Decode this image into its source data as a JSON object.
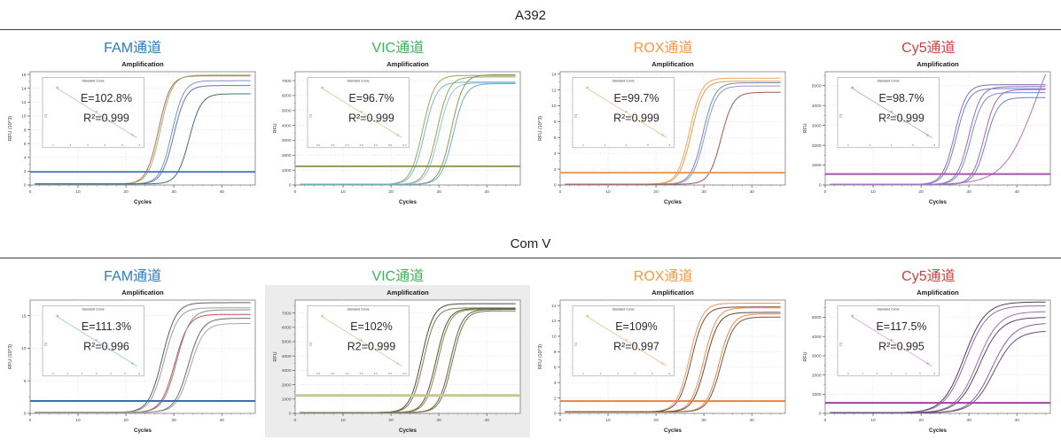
{
  "sections": [
    {
      "title": "A392",
      "channels": [
        {
          "label": "FAM通道",
          "color": "#2e7bbf"
        },
        {
          "label": "VIC通道",
          "color": "#41b05b"
        },
        {
          "label": "ROX通道",
          "color": "#f79843"
        },
        {
          "label": "Cy5通道",
          "color": "#c9413f"
        }
      ]
    },
    {
      "title": "Com V",
      "channels": [
        {
          "label": "FAM通道",
          "color": "#2e7bbf"
        },
        {
          "label": "VIC通道",
          "color": "#41b05b"
        },
        {
          "label": "ROX通道",
          "color": "#f79843"
        },
        {
          "label": "Cy5通道",
          "color": "#c9413f"
        }
      ]
    }
  ],
  "chart_data": [
    {
      "group": "A392",
      "channel": "FAM",
      "type": "line",
      "title": "Amplification",
      "xlabel": "Cycles",
      "ylabel": "RFU (10^3)",
      "xlim": [
        0,
        47
      ],
      "ylim": [
        0,
        16.4
      ],
      "xticks": [
        0,
        10,
        20,
        30,
        40
      ],
      "yticks": [
        0,
        2,
        4,
        6,
        8,
        10,
        12,
        14,
        16
      ],
      "threshold": {
        "value": 1.9,
        "color": "#4a7ab5",
        "width": 1.8
      },
      "curves": [
        {
          "color": "#c4635e",
          "baseline": 0.15,
          "plateau": 15.8,
          "midpoint": 26.8,
          "rate": 0.8
        },
        {
          "color": "#8fbb66",
          "baseline": 0.15,
          "plateau": 15.9,
          "midpoint": 27.2,
          "rate": 0.8
        },
        {
          "color": "#7d92c4",
          "baseline": 0.15,
          "plateau": 15.1,
          "midpoint": 29.6,
          "rate": 0.8
        },
        {
          "color": "#5d7ab2",
          "baseline": 0.15,
          "plateau": 14.4,
          "midpoint": 30.0,
          "rate": 0.8
        },
        {
          "color": "#3e7077",
          "baseline": 0.15,
          "plateau": 13.2,
          "midpoint": 33.2,
          "rate": 0.8
        }
      ],
      "inset": {
        "title": "Standard Curve",
        "ylabel": "Cq",
        "e_label": "E=102.8%",
        "r2_label": "R²=0.999",
        "line_color": "#a8c6e4",
        "xticks": [
          "1",
          "2",
          "3",
          "4",
          "5",
          "6"
        ],
        "points": [
          [
            0.05,
            0.04
          ],
          [
            0.5,
            0.48
          ],
          [
            0.68,
            0.66
          ],
          [
            0.92,
            0.9
          ]
        ]
      },
      "panel_bg": "#ffffff"
    },
    {
      "group": "A392",
      "channel": "VIC",
      "type": "line",
      "title": "Amplification",
      "xlabel": "Cycles",
      "ylabel": "RFU",
      "xlim": [
        0,
        47
      ],
      "ylim": [
        0,
        7600
      ],
      "xticks": [
        0,
        10,
        20,
        30,
        40
      ],
      "yticks": [
        0,
        1000,
        2000,
        3000,
        4000,
        5000,
        6000,
        7000
      ],
      "threshold": {
        "value": 1250,
        "color": "#8a8f4a",
        "width": 1.8
      },
      "curves": [
        {
          "color": "#a2a35e",
          "baseline": 40,
          "plateau": 7350,
          "midpoint": 26.6,
          "rate": 0.8
        },
        {
          "color": "#79b7d6",
          "baseline": 40,
          "plateau": 6900,
          "midpoint": 27.0,
          "rate": 0.8
        },
        {
          "color": "#9aa05a",
          "baseline": 40,
          "plateau": 7250,
          "midpoint": 29.6,
          "rate": 0.8
        },
        {
          "color": "#8fc3dd",
          "baseline": 40,
          "plateau": 6850,
          "midpoint": 30.0,
          "rate": 0.8
        },
        {
          "color": "#8e9652",
          "baseline": 40,
          "plateau": 7400,
          "midpoint": 32.6,
          "rate": 0.8
        },
        {
          "color": "#6aaccb",
          "baseline": 40,
          "plateau": 6800,
          "midpoint": 33.0,
          "rate": 0.8
        }
      ],
      "inset": {
        "title": "Standard Curve",
        "ylabel": "Cq",
        "e_label": "E=96.7%",
        "r2_label": "R²=0.999",
        "line_color": "#c9cf9a",
        "xticks": [
          "3.0",
          "3.5",
          "4.0",
          "4.5",
          "5.0",
          "5.5",
          "6.0"
        ],
        "points": [
          [
            0.05,
            0.04
          ],
          [
            0.5,
            0.48
          ],
          [
            0.68,
            0.66
          ],
          [
            0.92,
            0.9
          ]
        ]
      },
      "panel_bg": "#ffffff"
    },
    {
      "group": "A392",
      "channel": "ROX",
      "type": "line",
      "title": "Amplification",
      "xlabel": "Cycles",
      "ylabel": "RFU (10^3)",
      "xlim": [
        0,
        47
      ],
      "ylim": [
        0,
        14.3
      ],
      "xticks": [
        0,
        10,
        20,
        30,
        40
      ],
      "yticks": [
        0,
        2,
        4,
        6,
        8,
        10,
        12,
        14
      ],
      "threshold": {
        "value": 1.55,
        "color": "#f09a4e",
        "width": 2
      },
      "curves": [
        {
          "color": "#f0a45c",
          "baseline": 0.1,
          "plateau": 13.5,
          "midpoint": 27.0,
          "rate": 0.8
        },
        {
          "color": "#e89a50",
          "baseline": 0.1,
          "plateau": 13.1,
          "midpoint": 27.4,
          "rate": 0.8
        },
        {
          "color": "#7588bb",
          "baseline": 0.1,
          "plateau": 12.9,
          "midpoint": 29.8,
          "rate": 0.8
        },
        {
          "color": "#8a9ac6",
          "baseline": 0.1,
          "plateau": 12.5,
          "midpoint": 30.2,
          "rate": 0.8
        },
        {
          "color": "#a1594f",
          "baseline": 0.1,
          "plateau": 11.7,
          "midpoint": 33.6,
          "rate": 0.8
        }
      ],
      "inset": {
        "title": "Standard Curve",
        "ylabel": "Cq",
        "e_label": "E=99.7%",
        "r2_label": "R²=0.999",
        "line_color": "#f3c08e",
        "xticks": [
          "2",
          "3",
          "4",
          "5",
          "6"
        ],
        "points": [
          [
            0.05,
            0.04
          ],
          [
            0.5,
            0.48
          ],
          [
            0.68,
            0.66
          ],
          [
            0.92,
            0.9
          ]
        ]
      },
      "panel_bg": "#ffffff"
    },
    {
      "group": "A392",
      "channel": "Cy5",
      "type": "line",
      "title": "Amplification",
      "xlabel": "Cycles",
      "ylabel": "RFU",
      "xlim": [
        0,
        47
      ],
      "ylim": [
        0,
        5700
      ],
      "xticks": [
        0,
        10,
        20,
        30,
        40
      ],
      "yticks": [
        0,
        1000,
        2000,
        3000,
        4000,
        5000
      ],
      "threshold": {
        "value": 550,
        "color": "#a855a8",
        "width": 2
      },
      "curves": [
        {
          "color": "#8d6cba",
          "baseline": 30,
          "plateau": 5050,
          "midpoint": 27.0,
          "rate": 0.8
        },
        {
          "color": "#6b7fc7",
          "baseline": 30,
          "plateau": 4850,
          "midpoint": 27.4,
          "rate": 0.8
        },
        {
          "color": "#9b6ab5",
          "baseline": 30,
          "plateau": 4950,
          "midpoint": 30.0,
          "rate": 0.8
        },
        {
          "color": "#7a8cd0",
          "baseline": 30,
          "plateau": 4650,
          "midpoint": 30.4,
          "rate": 0.8
        },
        {
          "color": "#a569b8",
          "baseline": 30,
          "plateau": 4800,
          "midpoint": 33.2,
          "rate": 0.8
        },
        {
          "color": "#6f83c9",
          "baseline": 30,
          "plateau": 4400,
          "midpoint": 33.6,
          "rate": 0.8
        },
        {
          "color": "#b571bd",
          "baseline": 30,
          "plateau": 8600,
          "midpoint": 44.0,
          "rate": 0.3
        }
      ],
      "inset": {
        "title": "Standard Curve",
        "ylabel": "Cq",
        "e_label": "E=98.7%",
        "r2_label": "R²=0.999",
        "line_color": "#c79ad1",
        "xticks": [
          "2",
          "3",
          "4",
          "5",
          "6"
        ],
        "points": [
          [
            0.05,
            0.04
          ],
          [
            0.5,
            0.48
          ],
          [
            0.68,
            0.66
          ],
          [
            0.92,
            0.9
          ]
        ]
      },
      "panel_bg": "#ffffff"
    },
    {
      "group": "Com V",
      "channel": "FAM",
      "type": "line",
      "title": "Amplification",
      "xlabel": "Cycles",
      "ylabel": "RFU (10^3)",
      "xlim": [
        0,
        47
      ],
      "ylim": [
        0,
        17.4
      ],
      "xticks": [
        0,
        10,
        20,
        30,
        40
      ],
      "yticks": [
        0,
        5,
        10,
        15
      ],
      "threshold": {
        "value": 1.9,
        "color": "#3e6cb0",
        "width": 2
      },
      "curves": [
        {
          "color": "#5f5f5f",
          "baseline": 0.15,
          "plateau": 17.0,
          "midpoint": 27.6,
          "rate": 0.7
        },
        {
          "color": "#9b9b9b",
          "baseline": 0.15,
          "plateau": 16.2,
          "midpoint": 28.0,
          "rate": 0.7
        },
        {
          "color": "#c0564f",
          "baseline": 0.15,
          "plateau": 15.2,
          "midpoint": 30.2,
          "rate": 0.7
        },
        {
          "color": "#8a8a8a",
          "baseline": 0.15,
          "plateau": 15.9,
          "midpoint": 30.6,
          "rate": 0.7
        },
        {
          "color": "#6b6b6b",
          "baseline": 0.15,
          "plateau": 14.6,
          "midpoint": 33.0,
          "rate": 0.7
        },
        {
          "color": "#a5a5a5",
          "baseline": 0.15,
          "plateau": 13.8,
          "midpoint": 33.4,
          "rate": 0.7
        }
      ],
      "inset": {
        "title": "Standard Curve",
        "ylabel": "Cq",
        "e_label": "E=111.3%",
        "r2_label": "R²=0.996",
        "line_color": "#9dc3e6",
        "xticks": [
          "0",
          "1",
          "2",
          "3",
          "4",
          "5",
          "6"
        ],
        "points": [
          [
            0.05,
            0.04
          ],
          [
            0.5,
            0.48
          ],
          [
            0.68,
            0.66
          ],
          [
            0.92,
            0.9
          ]
        ]
      },
      "panel_bg": "#ffffff"
    },
    {
      "group": "Com V",
      "channel": "VIC",
      "type": "line",
      "title": "Amplification",
      "xlabel": "Cycles",
      "ylabel": "RFU",
      "xlim": [
        0,
        47
      ],
      "ylim": [
        0,
        7900
      ],
      "xticks": [
        0,
        10,
        20,
        30,
        40
      ],
      "yticks": [
        0,
        1000,
        2000,
        3000,
        4000,
        5000,
        6000,
        7000
      ],
      "threshold": {
        "value": 1250,
        "color": "#c5c78f",
        "width": 3
      },
      "curves": [
        {
          "color": "#4a4a3c",
          "baseline": 60,
          "plateau": 7650,
          "midpoint": 26.4,
          "rate": 0.8
        },
        {
          "color": "#7c7c4a",
          "baseline": 60,
          "plateau": 7350,
          "midpoint": 26.8,
          "rate": 0.8
        },
        {
          "color": "#55553f",
          "baseline": 60,
          "plateau": 7300,
          "midpoint": 29.4,
          "rate": 0.8
        },
        {
          "color": "#8a8a52",
          "baseline": 60,
          "plateau": 7250,
          "midpoint": 29.8,
          "rate": 0.8
        },
        {
          "color": "#60604a",
          "baseline": 60,
          "plateau": 7250,
          "midpoint": 32.4,
          "rate": 0.8
        },
        {
          "color": "#757547",
          "baseline": 60,
          "plateau": 7150,
          "midpoint": 32.8,
          "rate": 0.8
        }
      ],
      "inset": {
        "title": "Standard Curve",
        "ylabel": "Cq",
        "e_label": "E=102%",
        "r2_label": "R2=0.999",
        "line_color": "#cdd2a0",
        "xticks": [
          "3.0",
          "3.5",
          "4.0",
          "4.5",
          "5.0",
          "5.5",
          "6.0"
        ],
        "points": [
          [
            0.05,
            0.04
          ],
          [
            0.5,
            0.48
          ],
          [
            0.68,
            0.66
          ],
          [
            0.92,
            0.9
          ]
        ]
      },
      "panel_bg": "#ececec"
    },
    {
      "group": "Com V",
      "channel": "ROX",
      "type": "line",
      "title": "Amplification",
      "xlabel": "Cycles",
      "ylabel": "RFU (10^3)",
      "xlim": [
        0,
        47
      ],
      "ylim": [
        0,
        14.7
      ],
      "xticks": [
        0,
        10,
        20,
        30,
        40
      ],
      "yticks": [
        0,
        2,
        4,
        6,
        8,
        10,
        12,
        14
      ],
      "threshold": {
        "value": 1.6,
        "color": "#e8823c",
        "width": 2
      },
      "curves": [
        {
          "color": "#e89a5c",
          "baseline": 0.2,
          "plateau": 14.3,
          "midpoint": 27.0,
          "rate": 0.75
        },
        {
          "color": "#77503f",
          "baseline": 0.2,
          "plateau": 13.8,
          "midpoint": 27.4,
          "rate": 0.75
        },
        {
          "color": "#e4924f",
          "baseline": 0.2,
          "plateau": 13.7,
          "midpoint": 30.0,
          "rate": 0.75
        },
        {
          "color": "#6b4636",
          "baseline": 0.2,
          "plateau": 13.1,
          "midpoint": 30.4,
          "rate": 0.75
        },
        {
          "color": "#df8c4a",
          "baseline": 0.2,
          "plateau": 12.9,
          "midpoint": 33.2,
          "rate": 0.75
        },
        {
          "color": "#7a5240",
          "baseline": 0.2,
          "plateau": 12.5,
          "midpoint": 33.6,
          "rate": 0.75
        }
      ],
      "inset": {
        "title": "Standard Curve",
        "ylabel": "Cq",
        "e_label": "E=109%",
        "r2_label": "R²=0.997",
        "line_color": "#f3c08e",
        "xticks": [
          "1",
          "2",
          "3",
          "4",
          "5",
          "6"
        ],
        "points": [
          [
            0.05,
            0.04
          ],
          [
            0.5,
            0.48
          ],
          [
            0.68,
            0.66
          ],
          [
            0.92,
            0.9
          ]
        ]
      },
      "panel_bg": "#ffffff"
    },
    {
      "group": "Com V",
      "channel": "Cy5",
      "type": "line",
      "title": "Amplification",
      "xlabel": "Cycles",
      "ylabel": "RFU",
      "xlim": [
        0,
        47
      ],
      "ylim": [
        0,
        5900
      ],
      "xticks": [
        0,
        10,
        20,
        30,
        40
      ],
      "yticks": [
        0,
        1000,
        2000,
        3000,
        4000,
        5000
      ],
      "threshold": {
        "value": 550,
        "color": "#a23fa2",
        "width": 2
      },
      "curves": [
        {
          "color": "#4a3f55",
          "baseline": 30,
          "plateau": 5800,
          "midpoint": 29.0,
          "rate": 0.45
        },
        {
          "color": "#9b64ae",
          "baseline": 30,
          "plateau": 5600,
          "midpoint": 29.4,
          "rate": 0.45
        },
        {
          "color": "#a06bb4",
          "baseline": 30,
          "plateau": 5300,
          "midpoint": 31.8,
          "rate": 0.45
        },
        {
          "color": "#574a66",
          "baseline": 30,
          "plateau": 5000,
          "midpoint": 32.2,
          "rate": 0.45
        },
        {
          "color": "#8f5ca3",
          "baseline": 30,
          "plateau": 4700,
          "midpoint": 34.8,
          "rate": 0.45
        },
        {
          "color": "#5f5272",
          "baseline": 30,
          "plateau": 4300,
          "midpoint": 35.2,
          "rate": 0.45
        }
      ],
      "inset": {
        "title": "Standard Curve",
        "ylabel": "Cq",
        "e_label": "E=117.5%",
        "r2_label": "R²=0.995",
        "line_color": "#d4a3dc",
        "xticks": [
          "0",
          "1",
          "2",
          "3",
          "4",
          "5",
          "6"
        ],
        "points": [
          [
            0.05,
            0.04
          ],
          [
            0.5,
            0.48
          ],
          [
            0.68,
            0.66
          ],
          [
            0.92,
            0.9
          ]
        ]
      },
      "panel_bg": "#ffffff"
    }
  ]
}
